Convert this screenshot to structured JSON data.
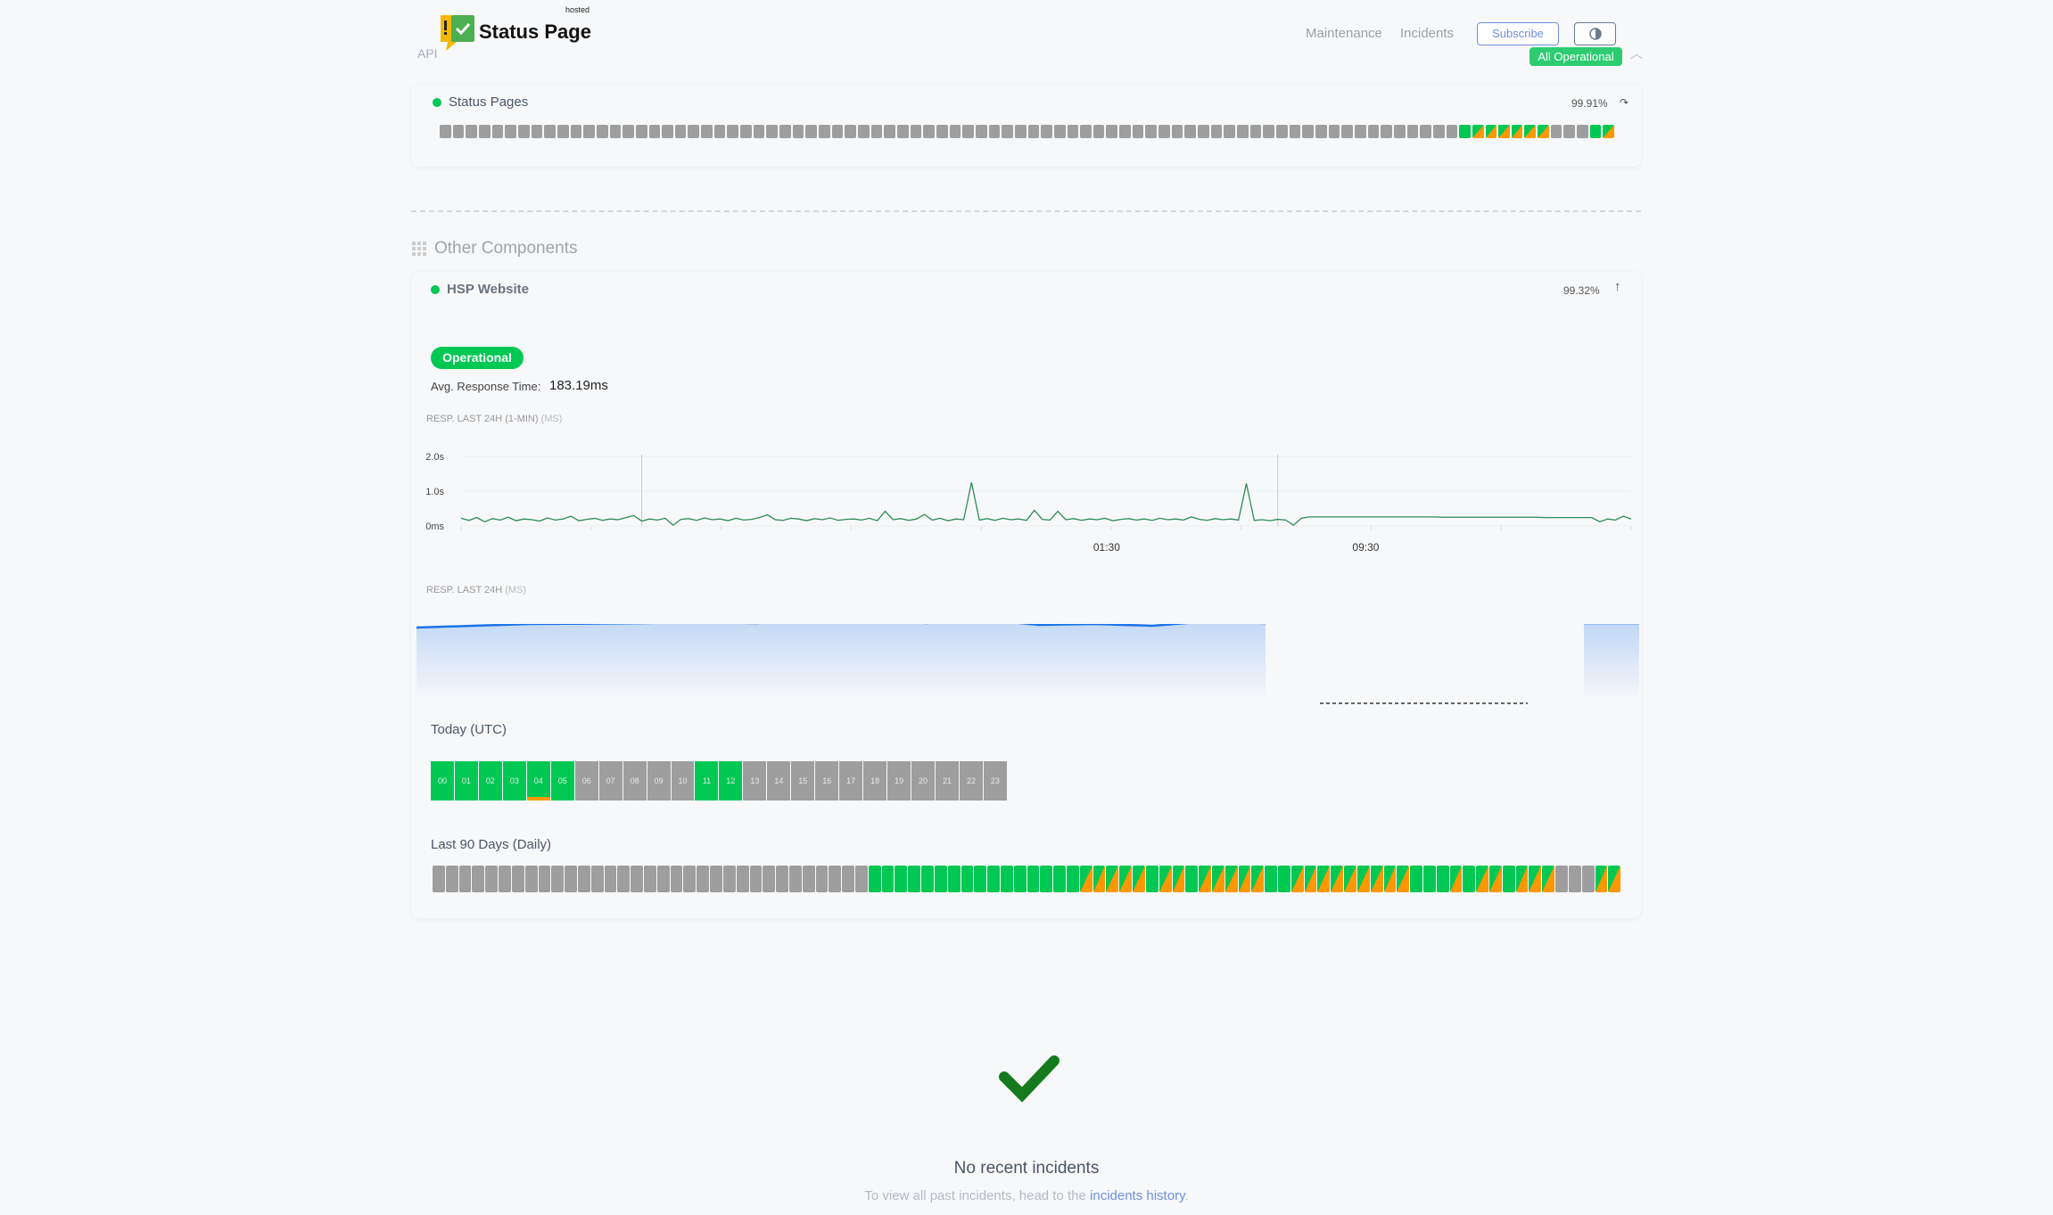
{
  "header": {
    "brand": "Status Page",
    "hosted": "hosted",
    "api": "API",
    "nav": [
      "Maintenance",
      "Incidents"
    ],
    "subscribe": "Subscribe",
    "theme_icon": "contrast-icon",
    "overall_status": "All Operational",
    "collapse_icon": "chevron-up-icon"
  },
  "colors": {
    "operational": "#00c853",
    "partial": "#ff9800",
    "no_data": "#9e9e9e",
    "accent": "#6e8fe0",
    "line": "#2e8b57",
    "area": "#1a73e8"
  },
  "status_pages": {
    "name": "Status Pages",
    "uptime": "99.91%",
    "daily": "xxxxxxxxxxxxxxxxxxxxxxxxxxxxxxxxxxxxxxxxxxxxxxxxxxxxxxxxxxxxxxxxxxxxxxxxxxxxxxgppppppxxxgp"
  },
  "other": {
    "heading": "Other Components",
    "hsp": {
      "name": "HSP Website",
      "uptime": "99.32%",
      "status": "Operational",
      "avg_label": "Avg. Response Time:",
      "avg_value": "183.19ms",
      "chart1_title": "RESP. LAST 24H (1-MIN)",
      "chart1_unit": "(MS)",
      "chart2_title": "RESP. LAST 24H",
      "chart2_unit": "(MS)",
      "today_label": "Today (UTC)",
      "hours_states": "ggggmgxxxxxggxxxxxxxxxxx",
      "hours": [
        "00",
        "01",
        "02",
        "03",
        "04",
        "05",
        "06",
        "07",
        "08",
        "09",
        "10",
        "11",
        "12",
        "13",
        "14",
        "15",
        "16",
        "17",
        "18",
        "19",
        "20",
        "21",
        "22",
        "23"
      ],
      "days_label": "Last 90 Days (Daily)",
      "daily": "xxxxxxxxxxxxxxxxxxxxxxxxxxxxxxxxxggggggggggggggggpppppgppgpppppggpppppppppgggpgppgpppxxxpp"
    }
  },
  "chart_data": [
    {
      "type": "line",
      "title": "RESP. LAST 24H (1-MIN) (MS)",
      "ylim": [
        0,
        2.0
      ],
      "y_ticks": [
        "0ms",
        "1.0s",
        "2.0s"
      ],
      "y_tick_values": [
        0,
        1,
        2
      ],
      "x_tick_labels": [
        "01:30",
        "09:30"
      ],
      "grid": true,
      "markers_at_index": [
        23,
        104
      ],
      "values": [
        0.22,
        0.16,
        0.24,
        0.12,
        0.21,
        0.17,
        0.25,
        0.15,
        0.2,
        0.18,
        0.14,
        0.23,
        0.17,
        0.2,
        0.28,
        0.15,
        0.19,
        0.22,
        0.16,
        0.2,
        0.18,
        0.24,
        0.3,
        0.14,
        0.2,
        0.17,
        0.22,
        0.02,
        0.19,
        0.21,
        0.16,
        0.23,
        0.18,
        0.2,
        0.15,
        0.22,
        0.17,
        0.19,
        0.24,
        0.32,
        0.18,
        0.16,
        0.22,
        0.2,
        0.15,
        0.21,
        0.18,
        0.23,
        0.16,
        0.19,
        0.2,
        0.17,
        0.22,
        0.15,
        0.42,
        0.18,
        0.21,
        0.16,
        0.2,
        0.33,
        0.17,
        0.22,
        0.15,
        0.2,
        0.18,
        1.25,
        0.17,
        0.21,
        0.16,
        0.22,
        0.18,
        0.2,
        0.16,
        0.45,
        0.19,
        0.17,
        0.42,
        0.18,
        0.21,
        0.16,
        0.2,
        0.18,
        0.22,
        0.15,
        0.19,
        0.21,
        0.17,
        0.2,
        0.16,
        0.22,
        0.18,
        0.2,
        0.17,
        0.26,
        0.19,
        0.16,
        0.21,
        0.18,
        0.2,
        0.17,
        1.22,
        0.16,
        0.18,
        0.15,
        0.19,
        0.17,
        0.02,
        0.22,
        0.26,
        0.26,
        0.26,
        0.26,
        0.26,
        0.26,
        0.26,
        0.26,
        0.26,
        0.26,
        0.26,
        0.26,
        0.26,
        0.26,
        0.26,
        0.26,
        0.26,
        0.25,
        0.25,
        0.25,
        0.25,
        0.25,
        0.25,
        0.25,
        0.25,
        0.25,
        0.25,
        0.25,
        0.25,
        0.25,
        0.24,
        0.24,
        0.24,
        0.24,
        0.24,
        0.24,
        0.24,
        0.12,
        0.2,
        0.17,
        0.28,
        0.2
      ]
    },
    {
      "type": "area",
      "title": "RESP. LAST 24H (MS)",
      "segments": [
        [
          280,
          290,
          300,
          302,
          305,
          310,
          305,
          320,
          340,
          305,
          325,
          295,
          300,
          290,
          315,
          305
        ],
        [
          305,
          305
        ]
      ],
      "highlight_index": 10
    }
  ],
  "incidents": {
    "title": "No recent incidents",
    "text": "To view all past incidents, head to the ",
    "link": "incidents history",
    "end": "."
  }
}
